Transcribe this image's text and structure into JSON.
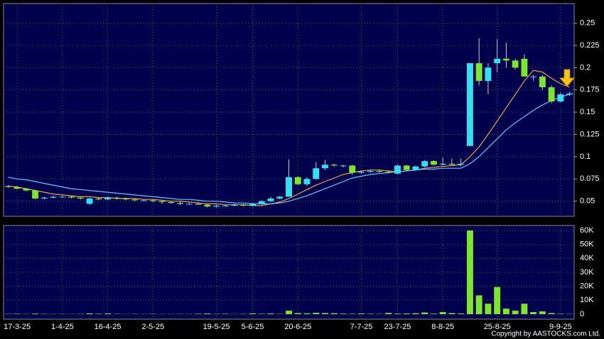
{
  "chart_data": {
    "type": "candlestick",
    "categories": [
      null,
      "17-3-25",
      null,
      null,
      null,
      null,
      "1-4-25",
      null,
      null,
      null,
      null,
      "16-4-25",
      null,
      null,
      null,
      null,
      "2-5-25",
      null,
      null,
      null,
      null,
      null,
      null,
      "19-5-25",
      null,
      null,
      null,
      "5-6-25",
      null,
      null,
      null,
      null,
      "20-6-25",
      null,
      null,
      null,
      null,
      null,
      null,
      "7-7-25",
      null,
      null,
      null,
      "23-7-25",
      null,
      null,
      null,
      null,
      "8-8-25",
      null,
      null,
      null,
      null,
      null,
      "25-8-25",
      null,
      null,
      null,
      null,
      null,
      null,
      "9-9-25",
      null
    ],
    "open": [
      0.067,
      0.066,
      0.064,
      0.062,
      0.053,
      0.054,
      0.055,
      0.055,
      0.054,
      0.047,
      0.053,
      0.052,
      0.054,
      0.053,
      0.052,
      0.051,
      0.051,
      0.05,
      0.049,
      0.048,
      0.047,
      0.047,
      0.046,
      0.044,
      0.045,
      0.045,
      0.046,
      0.045,
      0.047,
      0.05,
      0.053,
      0.055,
      0.077,
      0.069,
      0.075,
      0.087,
      0.091,
      0.09,
      0.09,
      0.082,
      0.083,
      0.084,
      0.083,
      0.081,
      0.09,
      0.085,
      0.089,
      0.095,
      0.091,
      0.092,
      0.091,
      0.112,
      0.205,
      0.185,
      0.205,
      0.21,
      0.208,
      0.21,
      0.19,
      0.19,
      0.178,
      0.162,
      0.17
    ],
    "high": [
      0.068,
      0.067,
      0.065,
      0.063,
      0.055,
      0.056,
      0.056,
      0.056,
      0.055,
      0.054,
      0.054,
      0.055,
      0.055,
      0.054,
      0.053,
      0.052,
      0.052,
      0.051,
      0.05,
      0.05,
      0.048,
      0.049,
      0.047,
      0.046,
      0.046,
      0.047,
      0.047,
      0.048,
      0.051,
      0.055,
      0.056,
      0.097,
      0.078,
      0.077,
      0.094,
      0.096,
      0.092,
      0.091,
      0.091,
      0.084,
      0.085,
      0.085,
      0.084,
      0.091,
      0.091,
      0.09,
      0.096,
      0.096,
      0.099,
      0.098,
      0.098,
      0.205,
      0.233,
      0.205,
      0.232,
      0.228,
      0.21,
      0.215,
      0.192,
      0.192,
      0.18,
      0.172,
      0.173
    ],
    "low": [
      0.065,
      0.063,
      0.061,
      0.052,
      0.052,
      0.053,
      0.054,
      0.053,
      0.052,
      0.046,
      0.051,
      0.051,
      0.052,
      0.051,
      0.05,
      0.05,
      0.049,
      0.047,
      0.047,
      0.046,
      0.046,
      0.046,
      0.043,
      0.043,
      0.044,
      0.044,
      0.044,
      0.044,
      0.046,
      0.049,
      0.052,
      0.055,
      0.068,
      0.067,
      0.074,
      0.085,
      0.089,
      0.088,
      0.08,
      0.081,
      0.082,
      0.082,
      0.081,
      0.08,
      0.084,
      0.084,
      0.088,
      0.09,
      0.09,
      0.09,
      0.089,
      0.112,
      0.18,
      0.17,
      0.195,
      0.2,
      0.198,
      0.19,
      0.185,
      0.175,
      0.16,
      0.161,
      0.168
    ],
    "close": [
      0.066,
      0.064,
      0.062,
      0.053,
      0.054,
      0.055,
      0.055,
      0.054,
      0.053,
      0.053,
      0.052,
      0.054,
      0.053,
      0.052,
      0.051,
      0.051,
      0.05,
      0.049,
      0.048,
      0.047,
      0.047,
      0.046,
      0.044,
      0.045,
      0.045,
      0.046,
      0.045,
      0.047,
      0.05,
      0.053,
      0.055,
      0.077,
      0.069,
      0.075,
      0.087,
      0.091,
      0.09,
      0.09,
      0.082,
      0.083,
      0.084,
      0.083,
      0.082,
      0.09,
      0.085,
      0.089,
      0.095,
      0.091,
      0.092,
      0.091,
      0.092,
      0.205,
      0.185,
      0.2,
      0.21,
      0.208,
      0.2,
      0.19,
      0.19,
      0.178,
      0.162,
      0.17,
      0.171
    ],
    "up_color": "#33e0f0",
    "down_color": "#7be62b",
    "lines": [
      {
        "color": "#f0a050",
        "values": [
          0.067,
          0.066,
          0.064,
          0.062,
          0.06,
          0.058,
          0.057,
          0.056,
          0.055,
          0.055,
          0.054,
          0.054,
          0.053,
          0.053,
          0.053,
          0.052,
          0.052,
          0.051,
          0.05,
          0.05,
          0.049,
          0.048,
          0.047,
          0.047,
          0.046,
          0.046,
          0.046,
          0.045,
          0.045,
          0.047,
          0.049,
          0.053,
          0.058,
          0.063,
          0.068,
          0.072,
          0.076,
          0.08,
          0.082,
          0.084,
          0.085,
          0.085,
          0.084,
          0.083,
          0.084,
          0.085,
          0.087,
          0.088,
          0.089,
          0.09,
          0.091,
          0.1,
          0.111,
          0.125,
          0.14,
          0.155,
          0.17,
          0.185,
          0.197,
          0.195,
          0.188,
          0.182,
          0.178
        ]
      },
      {
        "color": "#60c8ff",
        "values": [
          0.077,
          0.075,
          0.074,
          0.072,
          0.07,
          0.068,
          0.066,
          0.064,
          0.063,
          0.062,
          0.061,
          0.06,
          0.059,
          0.058,
          0.057,
          0.056,
          0.055,
          0.054,
          0.053,
          0.052,
          0.052,
          0.051,
          0.05,
          0.05,
          0.049,
          0.048,
          0.048,
          0.047,
          0.047,
          0.047,
          0.048,
          0.05,
          0.053,
          0.056,
          0.06,
          0.064,
          0.068,
          0.072,
          0.076,
          0.078,
          0.08,
          0.081,
          0.082,
          0.083,
          0.084,
          0.085,
          0.086,
          0.086,
          0.087,
          0.087,
          0.087,
          0.092,
          0.1,
          0.11,
          0.12,
          0.13,
          0.138,
          0.145,
          0.152,
          0.158,
          0.163,
          0.167,
          0.17
        ]
      }
    ],
    "ylim": [
      0.033,
      0.272
    ],
    "yticks": [
      0.05,
      0.075,
      0.1,
      0.125,
      0.15,
      0.175,
      0.2,
      0.225,
      0.25
    ],
    "grid": true,
    "volume": {
      "color": "#7be62b",
      "ylim": [
        -3560,
        63560
      ],
      "values": [
        200,
        300,
        100,
        400,
        200,
        100,
        150,
        100,
        200,
        600,
        300,
        500,
        200,
        100,
        150,
        100,
        200,
        100,
        100,
        150,
        100,
        300,
        500,
        200,
        300,
        100,
        200,
        600,
        300,
        500,
        200,
        2500,
        800,
        600,
        1000,
        800,
        700,
        400,
        300,
        500,
        300,
        200,
        900,
        400,
        500,
        700,
        1200,
        400,
        1500,
        800,
        500,
        60000,
        13500,
        7500,
        19500,
        4000,
        2500,
        7500,
        1500,
        2000,
        800,
        300,
        200
      ],
      "yticks": [
        0,
        {
          "value": 10000,
          "label": "10K"
        },
        {
          "value": 20000,
          "label": "20K"
        },
        {
          "value": 30000,
          "label": "30K"
        },
        {
          "value": 40000,
          "label": "40K"
        },
        {
          "value": 50000,
          "label": "50K"
        },
        {
          "value": 60000,
          "label": "60K"
        }
      ]
    },
    "copyright": "Copyright by AASTOCKS.com Ltd."
  }
}
